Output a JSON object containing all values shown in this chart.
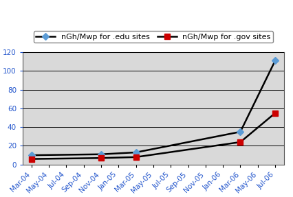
{
  "x_labels": [
    "Mar-04",
    "May-04",
    "Jul-04",
    "Sep-04",
    "Nov-04",
    "Jan-05",
    "Mar-05",
    "May-05",
    "Jul-05",
    "Sep-05",
    "Nov-05",
    "Jan-06",
    "Mar-06",
    "May-06",
    "Jul-06"
  ],
  "edu_x_indices": [
    0,
    4,
    6,
    12,
    14
  ],
  "edu_y": [
    10,
    11,
    13,
    35,
    111
  ],
  "gov_x_indices": [
    0,
    4,
    6,
    12,
    14
  ],
  "gov_y": [
    6,
    7,
    8,
    24,
    55
  ],
  "edu_marker_color": "#5b9bd5",
  "gov_marker_color": "#cc0000",
  "line_color": "#000000",
  "fig_bg_color": "#ffffff",
  "plot_bg_color": "#d9d9d9",
  "legend_edu": "nGh/Mwp for .edu sites",
  "legend_gov": "nGh/Mwp for .gov sites",
  "ylim": [
    0,
    120
  ],
  "yticks": [
    0,
    20,
    40,
    60,
    80,
    100,
    120
  ],
  "tick_fontsize": 7.5,
  "legend_fontsize": 8,
  "ytick_color": "#2255cc",
  "xtick_color": "#2255cc"
}
